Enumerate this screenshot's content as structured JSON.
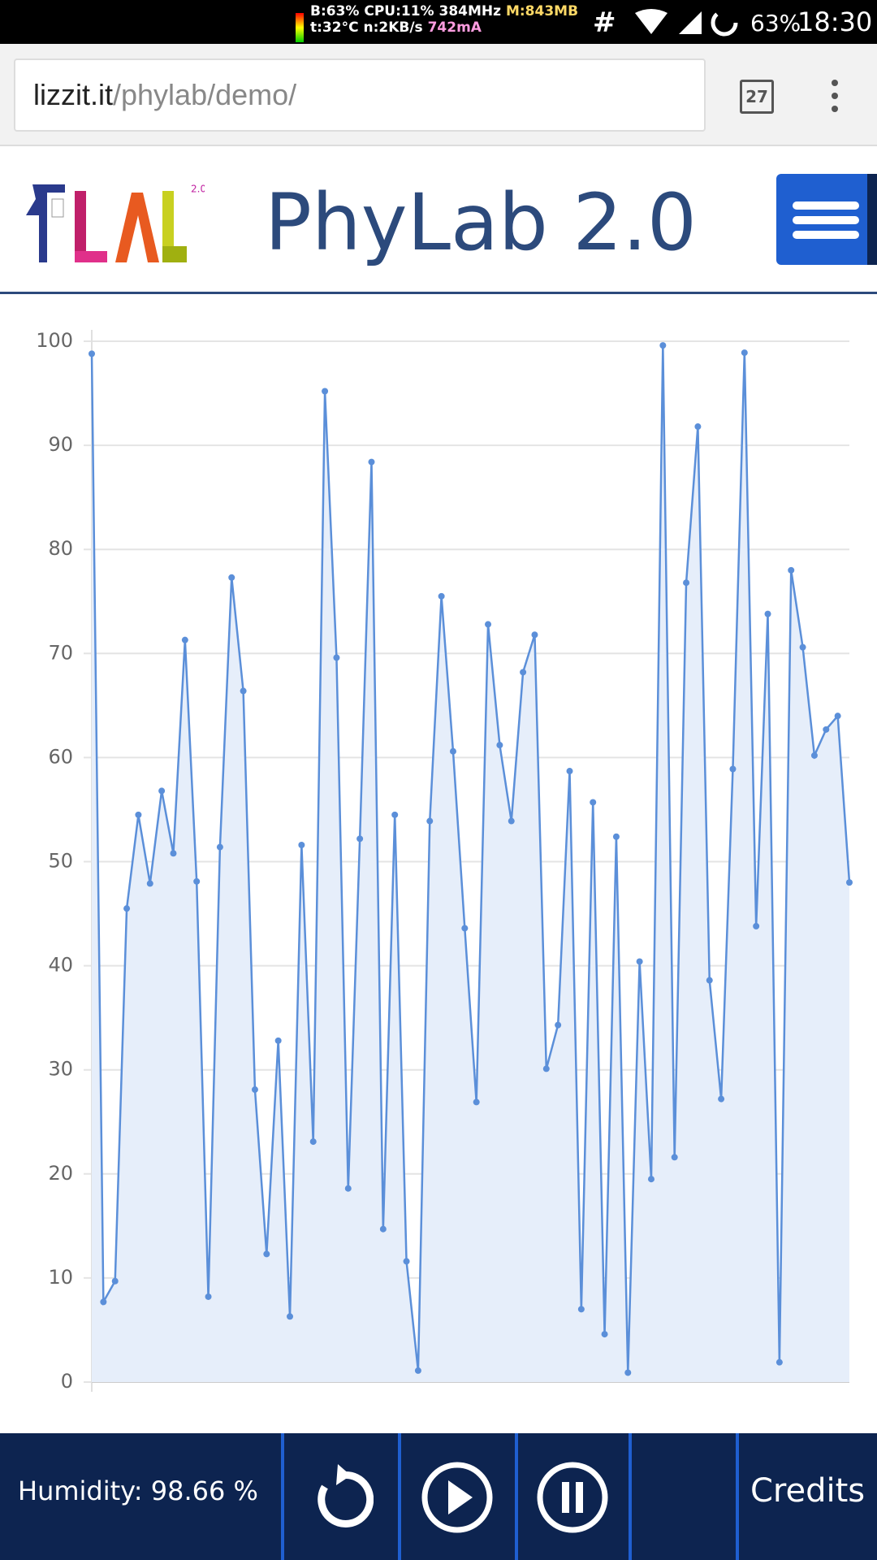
{
  "status_bar": {
    "stats_line1": "B:63% CPU:11% 384MHz",
    "stats_memory": "M:843MB",
    "stats_line2": "t:32°C n:2KB/s",
    "stats_current": "742mA",
    "hash": "#",
    "battery": "63%",
    "time": "18:30"
  },
  "browser": {
    "url_domain": "lizzit.it",
    "url_path": "/phylab/demo/",
    "tabs": "27"
  },
  "header": {
    "logo_badge": "2.0",
    "title": "PhyLab 2.0"
  },
  "chart_data": {
    "type": "line",
    "color": "#5b8fd9",
    "fill_color": "#e6eefa",
    "values": [
      98.8,
      7.7,
      9.7,
      45.5,
      54.5,
      47.9,
      56.8,
      50.8,
      71.3,
      48.1,
      8.2,
      51.4,
      77.3,
      66.4,
      28.1,
      12.3,
      32.8,
      6.3,
      51.6,
      23.1,
      95.2,
      69.6,
      18.6,
      52.2,
      88.4,
      14.7,
      54.5,
      11.6,
      1.1,
      53.9,
      75.5,
      60.6,
      43.6,
      26.9,
      72.8,
      61.2,
      53.9,
      68.2,
      71.8,
      30.1,
      34.3,
      58.7,
      7.0,
      55.7,
      4.6,
      52.4,
      0.9,
      40.4,
      19.5,
      99.6,
      21.6,
      76.8,
      91.8,
      38.6,
      27.2,
      58.9,
      98.9,
      43.8,
      73.8,
      1.9,
      78.0,
      70.6,
      60.2,
      62.7,
      64.0,
      48.0
    ],
    "ylim": [
      0,
      100
    ],
    "yticks": [
      0,
      10,
      20,
      30,
      40,
      50,
      60,
      70,
      80,
      90,
      100
    ],
    "grid": true
  },
  "footer": {
    "reading": "Humidity: 98.66 %",
    "credits": "Credits"
  }
}
